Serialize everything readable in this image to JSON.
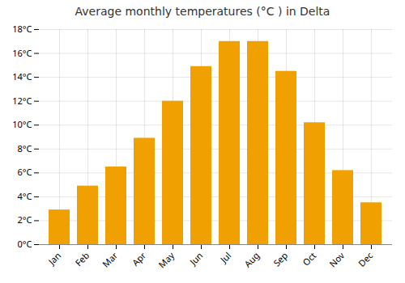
{
  "chart_data": {
    "type": "bar",
    "title": "Average monthly temperatures (°C ) in Delta",
    "categories": [
      "Jan",
      "Feb",
      "Mar",
      "Apr",
      "May",
      "Jun",
      "Jul",
      "Aug",
      "Sep",
      "Oct",
      "Nov",
      "Dec"
    ],
    "values": [
      2.9,
      4.9,
      6.5,
      8.9,
      12.0,
      14.9,
      17.0,
      17.0,
      14.5,
      10.2,
      6.2,
      3.5
    ],
    "color": "#F0A000",
    "ylim": [
      0,
      18
    ],
    "yticks": [
      {
        "value": 0,
        "label": "0°C"
      },
      {
        "value": 2,
        "label": "2°C"
      },
      {
        "value": 4,
        "label": "4°C"
      },
      {
        "value": 6,
        "label": "6°C"
      },
      {
        "value": 8,
        "label": "8°C"
      },
      {
        "value": 10,
        "label": "10°C"
      },
      {
        "value": 12,
        "label": "12°C"
      },
      {
        "value": 14,
        "label": "14°C"
      },
      {
        "value": 16,
        "label": "16°C"
      },
      {
        "value": 18,
        "label": "18°C"
      }
    ],
    "grid": true
  }
}
